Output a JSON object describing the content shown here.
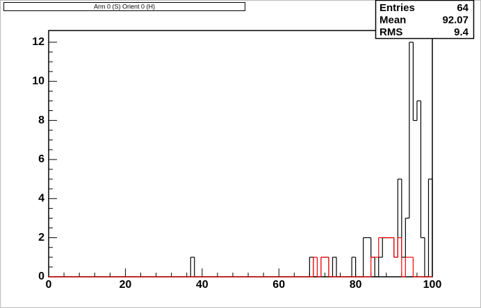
{
  "chart_data": {
    "type": "histogram",
    "title": "Arm 0 (S) Orient 0 (H)",
    "bins": [
      0,
      1,
      2,
      3,
      4,
      5,
      6,
      7,
      8,
      9,
      10,
      11,
      12,
      13,
      14,
      15,
      16,
      17,
      18,
      19,
      20,
      21,
      22,
      23,
      24,
      25,
      26,
      27,
      28,
      29,
      30,
      31,
      32,
      33,
      34,
      35,
      36,
      37,
      38,
      39,
      40,
      41,
      42,
      43,
      44,
      45,
      46,
      47,
      48,
      49,
      50,
      51,
      52,
      53,
      54,
      55,
      56,
      57,
      58,
      59,
      60,
      61,
      62,
      63,
      64,
      65,
      66,
      67,
      68,
      69,
      70,
      71,
      72,
      73,
      74,
      75,
      76,
      77,
      78,
      79,
      80,
      81,
      82,
      83,
      84,
      85,
      86,
      87,
      88,
      89,
      90,
      91,
      92,
      93,
      94,
      95,
      96,
      97,
      98,
      99,
      100
    ],
    "series": [
      {
        "color": "#000000",
        "values": [
          0,
          0,
          0,
          0,
          0,
          0,
          0,
          0,
          0,
          0,
          0,
          0,
          0,
          0,
          0,
          0,
          0,
          0,
          0,
          0,
          0,
          0,
          0,
          0,
          0,
          0,
          0,
          0,
          0,
          0,
          0,
          0,
          0,
          0,
          0,
          0,
          0,
          1,
          0,
          0,
          0,
          0,
          0,
          0,
          0,
          0,
          0,
          0,
          0,
          0,
          0,
          0,
          0,
          0,
          0,
          0,
          0,
          0,
          0,
          0,
          0,
          0,
          0,
          0,
          0,
          0,
          0,
          0,
          1,
          0,
          0,
          1,
          1,
          0,
          1,
          0,
          0,
          0,
          0,
          1,
          0,
          0,
          2,
          2,
          1,
          0,
          1,
          2,
          2,
          2,
          1,
          5,
          1,
          3,
          12,
          8,
          9,
          2,
          0,
          5
        ]
      },
      {
        "color": "#ff0000",
        "values": [
          0,
          0,
          0,
          0,
          0,
          0,
          0,
          0,
          0,
          0,
          0,
          0,
          0,
          0,
          0,
          0,
          0,
          0,
          0,
          0,
          0,
          0,
          0,
          0,
          0,
          0,
          0,
          0,
          0,
          0,
          0,
          0,
          0,
          0,
          0,
          0,
          0,
          0,
          0,
          0,
          0,
          0,
          0,
          0,
          0,
          0,
          0,
          0,
          0,
          0,
          0,
          0,
          0,
          0,
          0,
          0,
          0,
          0,
          0,
          0,
          0,
          0,
          0,
          0,
          0,
          0,
          0,
          0,
          0,
          1,
          0,
          1,
          1,
          0,
          0,
          0,
          0,
          0,
          0,
          0,
          0,
          0,
          0,
          0,
          1,
          1,
          2,
          2,
          2,
          2,
          1,
          2,
          0,
          1,
          1,
          0,
          0,
          0,
          0,
          0
        ]
      }
    ],
    "xlim": [
      0,
      100
    ],
    "xticks": [
      0,
      20,
      40,
      60,
      80,
      100
    ],
    "ylim": [
      0,
      12.6
    ],
    "yticks": [
      0,
      2,
      4,
      6,
      8,
      10,
      12
    ],
    "stats": [
      {
        "label": "Entries",
        "value": 64
      },
      {
        "label": "Mean",
        "value": 92.07
      },
      {
        "label": "RMS",
        "value": 9.4
      }
    ]
  }
}
